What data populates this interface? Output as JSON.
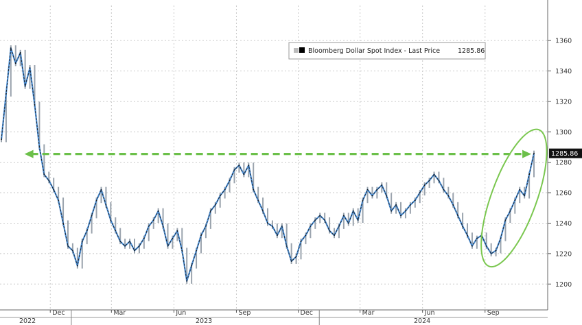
{
  "chart_data": {
    "type": "line",
    "legend": {
      "label": "Bloomberg Dollar Spot Index - Last Price",
      "value": "1285.86",
      "placement": "top-right"
    },
    "last_price_label": "1285.86",
    "ylim": [
      1183,
      1383
    ],
    "y_ticks": [
      1200,
      1220,
      1240,
      1260,
      1280,
      1300,
      1320,
      1340,
      1360
    ],
    "x_month_ticks": [
      "Dec",
      "Mar",
      "Jun",
      "Sep",
      "Dec",
      "Mar",
      "Jun",
      "Sep"
    ],
    "x_year_labels": [
      "2022",
      "2023",
      "2024"
    ],
    "grid": true,
    "series": [
      {
        "x": [
          "2022-09-20",
          "2022-09-27",
          "2022-10-04",
          "2022-10-11",
          "2022-10-18",
          "2022-10-25",
          "2022-11-01",
          "2022-11-08",
          "2022-11-15",
          "2022-11-22",
          "2022-11-29",
          "2022-12-06",
          "2022-12-13",
          "2022-12-20",
          "2022-12-27",
          "2023-01-03",
          "2023-01-10",
          "2023-01-17",
          "2023-01-24",
          "2023-01-31",
          "2023-02-07",
          "2023-02-14",
          "2023-02-21",
          "2023-02-28",
          "2023-03-07",
          "2023-03-14",
          "2023-03-21",
          "2023-03-28",
          "2023-04-04",
          "2023-04-11",
          "2023-04-18",
          "2023-04-25",
          "2023-05-02",
          "2023-05-09",
          "2023-05-16",
          "2023-05-23",
          "2023-05-30",
          "2023-06-06",
          "2023-06-13",
          "2023-06-20",
          "2023-06-27",
          "2023-07-04",
          "2023-07-11",
          "2023-07-18",
          "2023-07-25",
          "2023-08-01",
          "2023-08-08",
          "2023-08-15",
          "2023-08-22",
          "2023-08-29",
          "2023-09-05",
          "2023-09-12",
          "2023-09-19",
          "2023-09-26",
          "2023-10-03",
          "2023-10-10",
          "2023-10-17",
          "2023-10-24",
          "2023-10-31",
          "2023-11-07",
          "2023-11-14",
          "2023-11-21",
          "2023-11-28",
          "2023-12-05",
          "2023-12-12",
          "2023-12-19",
          "2023-12-26",
          "2024-01-02",
          "2024-01-09",
          "2024-01-16",
          "2024-01-23",
          "2024-01-30",
          "2024-02-06",
          "2024-02-13",
          "2024-02-20",
          "2024-02-27",
          "2024-03-05",
          "2024-03-12",
          "2024-03-19",
          "2024-03-26",
          "2024-04-02",
          "2024-04-09",
          "2024-04-16",
          "2024-04-23",
          "2024-04-30",
          "2024-05-07",
          "2024-05-14",
          "2024-05-21",
          "2024-05-28",
          "2024-06-04",
          "2024-06-11",
          "2024-06-18",
          "2024-06-25",
          "2024-07-02",
          "2024-07-09",
          "2024-07-16",
          "2024-07-23",
          "2024-07-30",
          "2024-08-06",
          "2024-08-13",
          "2024-08-20",
          "2024-08-27",
          "2024-09-03",
          "2024-09-10",
          "2024-09-17",
          "2024-09-24",
          "2024-10-01",
          "2024-10-08",
          "2024-10-15",
          "2024-10-22",
          "2024-10-29",
          "2024-11-05",
          "2024-11-12"
        ],
        "values": [
          1295,
          1325,
          1355,
          1345,
          1352,
          1330,
          1342,
          1318,
          1290,
          1272,
          1268,
          1262,
          1255,
          1240,
          1225,
          1222,
          1212,
          1228,
          1235,
          1245,
          1255,
          1262,
          1252,
          1242,
          1235,
          1228,
          1225,
          1228,
          1222,
          1225,
          1230,
          1238,
          1242,
          1248,
          1238,
          1225,
          1230,
          1235,
          1222,
          1202,
          1212,
          1222,
          1232,
          1238,
          1248,
          1252,
          1258,
          1262,
          1268,
          1275,
          1278,
          1272,
          1278,
          1262,
          1255,
          1248,
          1240,
          1238,
          1232,
          1238,
          1225,
          1215,
          1218,
          1228,
          1232,
          1238,
          1242,
          1245,
          1242,
          1235,
          1232,
          1238,
          1245,
          1240,
          1248,
          1242,
          1255,
          1262,
          1258,
          1262,
          1265,
          1258,
          1248,
          1252,
          1245,
          1248,
          1252,
          1255,
          1260,
          1265,
          1268,
          1272,
          1268,
          1262,
          1258,
          1252,
          1245,
          1238,
          1232,
          1225,
          1230,
          1232,
          1225,
          1220,
          1222,
          1230,
          1242,
          1248,
          1255,
          1262,
          1258,
          1272,
          1285.86
        ]
      }
    ]
  }
}
